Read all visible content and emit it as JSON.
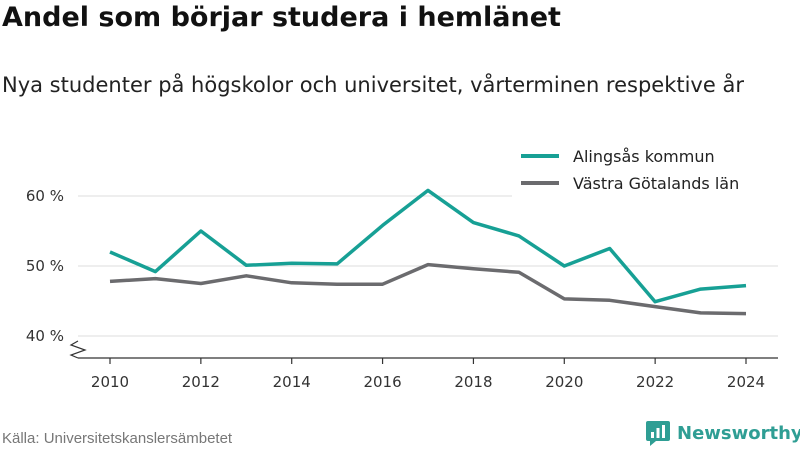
{
  "chart_data": {
    "type": "line",
    "title": "Andel som börjar studera i hemlänet",
    "subtitle": "Nya studenter på högskolor och universitet, vårterminen respektive år",
    "x": [
      2010,
      2011,
      2012,
      2013,
      2014,
      2015,
      2016,
      2017,
      2018,
      2019,
      2020,
      2021,
      2022,
      2023,
      2024
    ],
    "x_ticks": [
      "2010",
      "2012",
      "2014",
      "2016",
      "2018",
      "2020",
      "2022",
      "2024"
    ],
    "y_ticks": [
      "40 %",
      "50 %",
      "60 %"
    ],
    "ylim": [
      40,
      64
    ],
    "xlabel": "",
    "ylabel": "",
    "grid": true,
    "axis_break": true,
    "legend_position": "top-right",
    "series": [
      {
        "name": "Alingsås kommun",
        "color": "#17a095",
        "values": [
          52.0,
          49.2,
          55.0,
          50.1,
          50.4,
          50.3,
          55.8,
          60.8,
          56.2,
          54.3,
          50.0,
          52.5,
          44.9,
          46.7,
          47.2
        ]
      },
      {
        "name": "Västra Götalands län",
        "color": "#6b6b6e",
        "values": [
          47.8,
          48.2,
          47.5,
          48.6,
          47.6,
          47.4,
          47.4,
          50.2,
          49.6,
          49.1,
          45.3,
          45.1,
          44.2,
          43.3,
          43.2
        ]
      }
    ]
  },
  "footer": {
    "source": "Källa: Universitetskanslersämbetet",
    "brand": "Newsworthy",
    "brand_color": "#2f9e94",
    "brand_icon": "newsworthy-logo-icon"
  }
}
